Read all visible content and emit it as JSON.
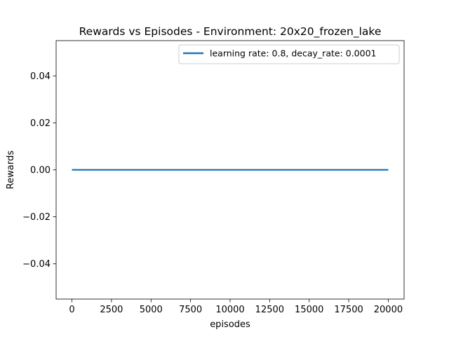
{
  "chart_data": {
    "type": "line",
    "title": "Rewards vs Episodes - Environment: 20x20_frozen_lake",
    "xlabel": "episodes",
    "ylabel": "Rewards",
    "xlim": [
      -1000,
      21000
    ],
    "ylim": [
      -0.055,
      0.055
    ],
    "xticks": [
      0,
      2500,
      5000,
      7500,
      10000,
      12500,
      15000,
      17500,
      20000
    ],
    "xtick_labels": [
      "0",
      "2500",
      "5000",
      "7500",
      "10000",
      "12500",
      "15000",
      "17500",
      "20000"
    ],
    "yticks": [
      -0.04,
      -0.02,
      0.0,
      0.02,
      0.04
    ],
    "ytick_labels": [
      "−0.04",
      "−0.02",
      "0.00",
      "0.02",
      "0.04"
    ],
    "grid": false,
    "legend_position": "upper right",
    "series": [
      {
        "name": "learning rate: 0.8, decay_rate: 0.0001",
        "color": "#1f77b4",
        "x": [
          0,
          20000
        ],
        "y": [
          0,
          0
        ]
      }
    ]
  }
}
